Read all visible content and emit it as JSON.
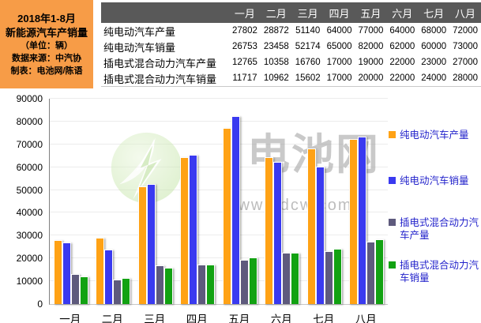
{
  "panel": {
    "lines": [
      "2018年1-8月",
      "新能源汽车产销量",
      "（单位：辆）",
      "数据来源：中汽协",
      "制表：电池网/陈语"
    ],
    "bg_color": "#F79C47"
  },
  "table": {
    "header_bg": "#595959",
    "months": [
      "一月",
      "二月",
      "三月",
      "四月",
      "五月",
      "六月",
      "七月",
      "八月"
    ],
    "rows": [
      {
        "label": "纯电动汽车产量",
        "values": [
          27802,
          28872,
          51140,
          64000,
          77000,
          64000,
          68000,
          72000
        ]
      },
      {
        "label": "纯电动汽车销量",
        "values": [
          26753,
          23458,
          52174,
          65000,
          82000,
          62000,
          60000,
          73000
        ]
      },
      {
        "label": "插电式混合动力汽车产量",
        "values": [
          12765,
          10358,
          16760,
          17000,
          19000,
          22000,
          23000,
          27000
        ]
      },
      {
        "label": "插电式混合动力汽车销量",
        "values": [
          11717,
          10962,
          15602,
          17000,
          20000,
          22000,
          24000,
          28000
        ]
      }
    ]
  },
  "chart_data": {
    "type": "bar",
    "title": "2018年1-8月新能源汽车产销量（单位：辆）",
    "categories": [
      "一月",
      "二月",
      "三月",
      "四月",
      "五月",
      "六月",
      "七月",
      "八月"
    ],
    "series": [
      {
        "key": "bev-production",
        "name": "纯电动汽车产量",
        "color": "#FFA215",
        "values": [
          27802,
          28872,
          51140,
          64000,
          77000,
          64000,
          68000,
          72000
        ]
      },
      {
        "key": "bev-sales",
        "name": "纯电动汽车销量",
        "color": "#3A3AF0",
        "values": [
          26753,
          23458,
          52174,
          65000,
          82000,
          62000,
          60000,
          73000
        ]
      },
      {
        "key": "phev-production",
        "name": "插电式混合动力汽车产量",
        "color": "#5E5A7D",
        "values": [
          12765,
          10358,
          16760,
          17000,
          19000,
          22000,
          23000,
          27000
        ]
      },
      {
        "key": "phev-sales",
        "name": "插电式混合动力汽车销量",
        "color": "#12A212",
        "values": [
          11717,
          10962,
          15602,
          17000,
          20000,
          22000,
          24000,
          28000
        ]
      }
    ],
    "xlabel": "",
    "ylabel": "",
    "ylim": [
      0,
      90000
    ],
    "ytick_step": 10000,
    "grid": true,
    "legend_position": "right"
  },
  "watermark": {
    "brand": "电池网",
    "url": "www.itdcw.com",
    "logo": "battery-net-swoosh-logo"
  }
}
